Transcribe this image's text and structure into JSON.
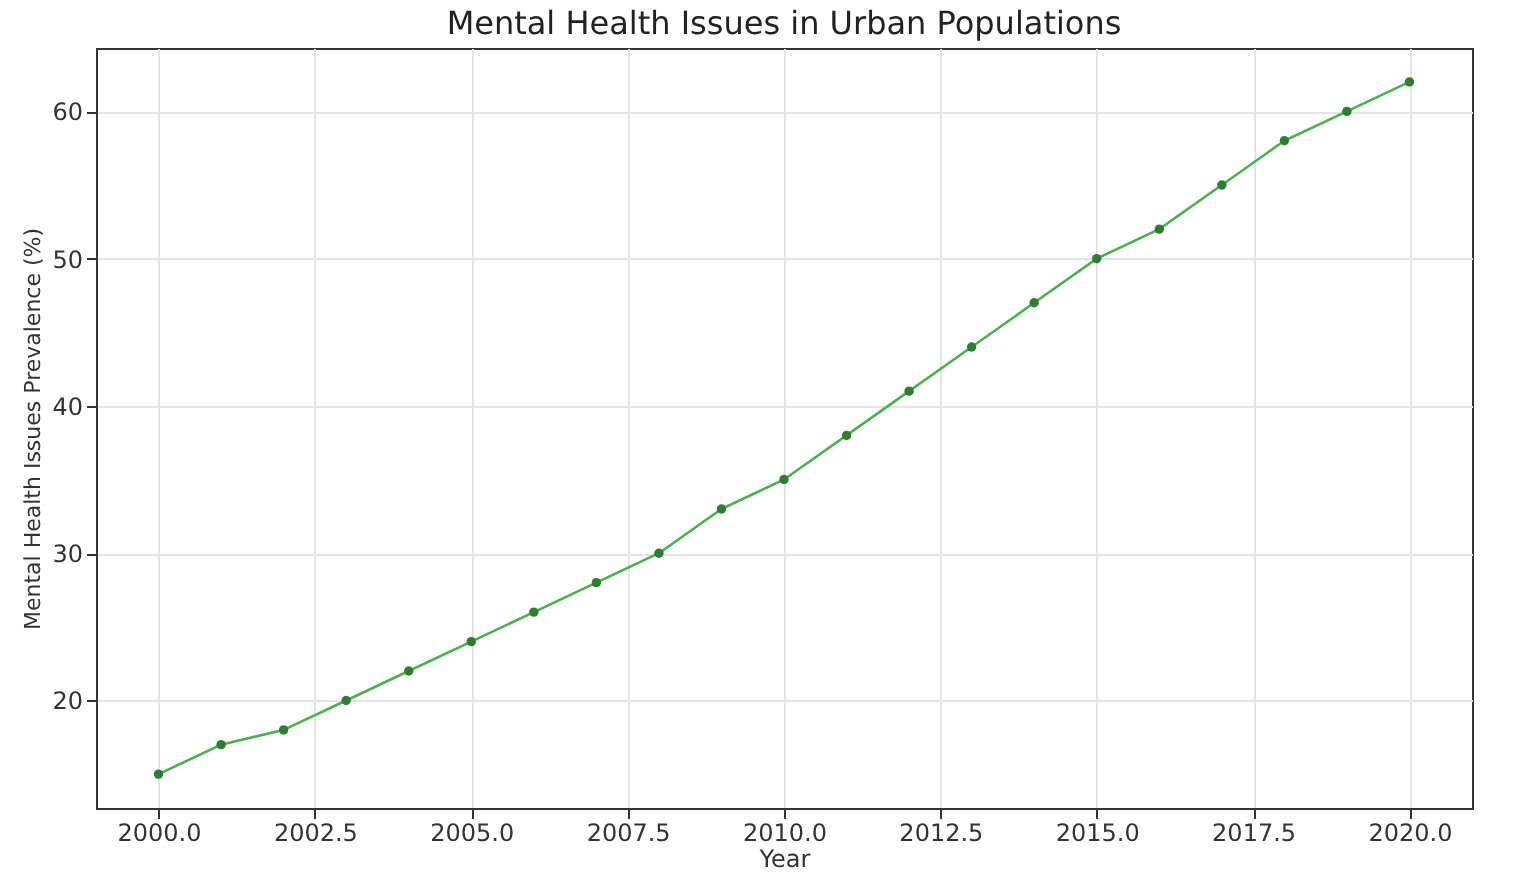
{
  "chart_data": {
    "type": "line",
    "title": "Mental Health Issues in Urban Populations",
    "xlabel": "Year",
    "ylabel": "Mental Health Issues Prevalence (%)",
    "x": [
      2000,
      2001,
      2002,
      2003,
      2004,
      2005,
      2006,
      2007,
      2008,
      2009,
      2010,
      2011,
      2012,
      2013,
      2014,
      2015,
      2016,
      2017,
      2018,
      2019,
      2020
    ],
    "series": [
      {
        "color": "#4caf50",
        "values": [
          15,
          17,
          18,
          20,
          22,
          24,
          26,
          28,
          30,
          33,
          35,
          38,
          41,
          44,
          47,
          50,
          52,
          55,
          58,
          60,
          62
        ]
      }
    ],
    "xlim": [
      1999,
      2021
    ],
    "xticks": [
      {
        "value": 2000,
        "label": "2000.0"
      },
      {
        "value": 2002.5,
        "label": "2002.5"
      },
      {
        "value": 2005,
        "label": "2005.0"
      },
      {
        "value": 2007.5,
        "label": "2007.5"
      },
      {
        "value": 2010,
        "label": "2010.0"
      },
      {
        "value": 2012.5,
        "label": "2012.5"
      },
      {
        "value": 2015,
        "label": "2015.0"
      },
      {
        "value": 2017.5,
        "label": "2017.5"
      },
      {
        "value": 2020,
        "label": "2020.0"
      }
    ],
    "ylim": [
      12.7,
      64.3
    ],
    "yticks": [
      20,
      30,
      40,
      50,
      60
    ],
    "grid": true,
    "marker": "circle",
    "legend": false
  }
}
